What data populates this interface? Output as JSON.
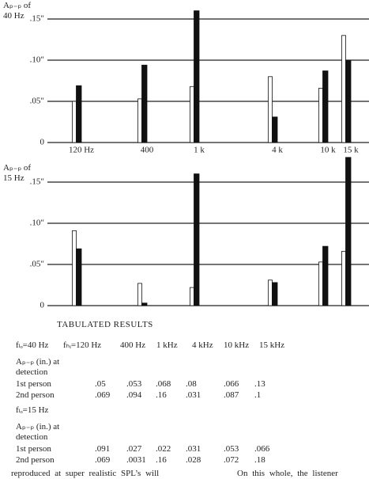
{
  "chart_data": [
    {
      "type": "bar",
      "title": "Aₚ₋ₚ of 40 Hz",
      "categories": [
        "120 Hz",
        "400",
        "1 k",
        "4 k",
        "10 k",
        "15 k"
      ],
      "series": [
        {
          "color": "#ffffff",
          "values": [
            0.05,
            0.053,
            0.068,
            0.08,
            0.066,
            0.13
          ]
        },
        {
          "color": "#111111",
          "values": [
            0.069,
            0.094,
            0.16,
            0.031,
            0.087,
            0.1
          ]
        }
      ],
      "ylim": [
        0,
        0.16
      ],
      "yticks": [
        0,
        {
          "value": 0.05,
          "label": ".05″"
        },
        {
          "value": 0.1,
          "label": ".10″"
        },
        {
          "value": 0.15,
          "label": ".15″"
        }
      ],
      "grid": true
    },
    {
      "type": "bar",
      "title": "Aₚ₋ₚ of 15 Hz",
      "categories": [
        null,
        null,
        null,
        null,
        null,
        null
      ],
      "series": [
        {
          "color": "#ffffff",
          "values": [
            0.091,
            0.027,
            0.022,
            0.031,
            0.053,
            0.066
          ]
        },
        {
          "color": "#111111",
          "values": [
            0.069,
            0.0031,
            0.16,
            0.028,
            0.072,
            0.18
          ]
        }
      ],
      "ylim": [
        0,
        0.18
      ],
      "yticks": [
        0,
        {
          "value": 0.05,
          "label": ".05″"
        },
        {
          "value": 0.1,
          "label": ".10″"
        },
        {
          "value": 0.15,
          "label": ".15″"
        }
      ],
      "grid": true
    }
  ],
  "table": {
    "title": "TABULATED RESULTS",
    "header": [
      "fₗₒ=40 Hz",
      "fₕᵢ=120 Hz",
      "400 Hz",
      "1 kHz",
      "4 kHz",
      "10 kHz",
      "15 kHz"
    ],
    "groups": [
      {
        "caption": [
          "Aₚ₋ₚ (in.) at",
          "detection"
        ],
        "rows": [
          [
            "1st person",
            ".05",
            ".053",
            ".068",
            ".08",
            ".066",
            ".13"
          ],
          [
            "2nd person",
            ".069",
            ".094",
            ".16",
            ".031",
            ".087",
            ".1"
          ]
        ]
      },
      {
        "heading": "fₗₒ=15 Hz",
        "caption": [
          "Aₚ₋ₚ (in.) at",
          "detection"
        ],
        "rows": [
          [
            "1st person",
            ".091",
            ".027",
            ".022",
            ".031",
            ".053",
            ".066"
          ],
          [
            "2nd person",
            ".069",
            ".0031",
            ".16",
            ".028",
            ".072",
            ".18"
          ]
        ]
      }
    ]
  },
  "footer": [
    "reproduced at super realistic SPL’s will",
    "On this whole, the listener"
  ]
}
